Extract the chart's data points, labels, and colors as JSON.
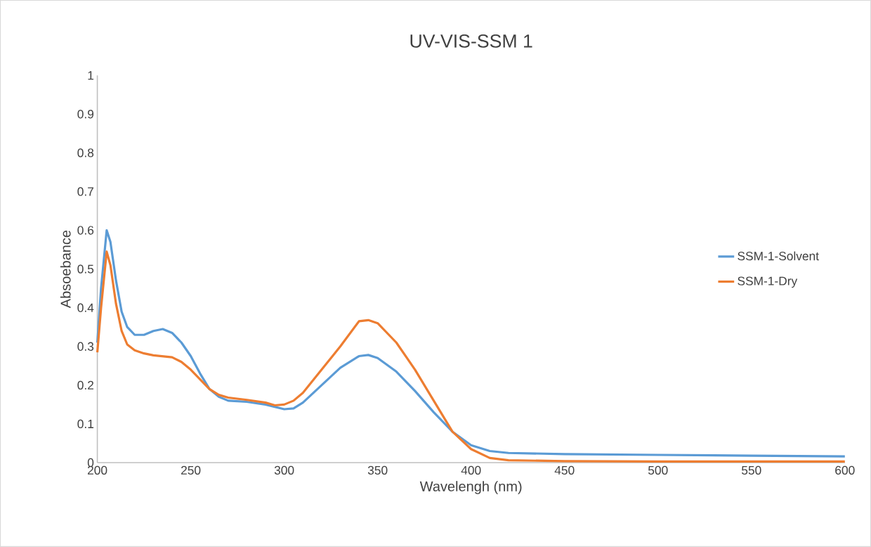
{
  "chart_data": {
    "type": "line",
    "title": "UV-VIS-SSM 1",
    "xlabel": "Wavelengh (nm)",
    "ylabel": "Absoebance",
    "xlim": [
      200,
      600
    ],
    "xticks": [
      200,
      250,
      300,
      350,
      400,
      450,
      500,
      550,
      600
    ],
    "ylim": [
      0,
      1
    ],
    "yticks": [
      0,
      0.1,
      0.2,
      0.3,
      0.4,
      0.5,
      0.6,
      0.7,
      0.8,
      0.9,
      1
    ],
    "grid": false,
    "legend": "right",
    "marker": "none",
    "line_style": "solid",
    "series": [
      {
        "name": "SSM-1-Solvent",
        "color": "#5b9bd5",
        "x": [
          200,
          202,
          205,
          207,
          210,
          213,
          216,
          220,
          225,
          230,
          235,
          240,
          245,
          250,
          255,
          260,
          265,
          270,
          280,
          290,
          300,
          305,
          310,
          320,
          330,
          340,
          345,
          350,
          360,
          370,
          380,
          390,
          400,
          410,
          420,
          450,
          500,
          550,
          600
        ],
        "values": [
          0.31,
          0.45,
          0.6,
          0.57,
          0.47,
          0.39,
          0.35,
          0.33,
          0.33,
          0.34,
          0.345,
          0.335,
          0.31,
          0.275,
          0.23,
          0.19,
          0.17,
          0.16,
          0.157,
          0.15,
          0.138,
          0.14,
          0.155,
          0.2,
          0.245,
          0.275,
          0.278,
          0.27,
          0.235,
          0.185,
          0.13,
          0.08,
          0.045,
          0.03,
          0.025,
          0.022,
          0.02,
          0.018,
          0.016
        ]
      },
      {
        "name": "SSM-1-Dry",
        "color": "#ed7d31",
        "x": [
          200,
          202,
          205,
          207,
          210,
          213,
          216,
          220,
          225,
          230,
          240,
          245,
          250,
          255,
          260,
          265,
          270,
          280,
          290,
          295,
          300,
          305,
          310,
          320,
          330,
          340,
          345,
          350,
          360,
          370,
          380,
          390,
          400,
          410,
          420,
          450,
          500,
          600
        ],
        "values": [
          0.285,
          0.4,
          0.545,
          0.51,
          0.41,
          0.34,
          0.305,
          0.29,
          0.282,
          0.277,
          0.272,
          0.26,
          0.24,
          0.215,
          0.19,
          0.175,
          0.168,
          0.162,
          0.155,
          0.148,
          0.15,
          0.16,
          0.18,
          0.24,
          0.3,
          0.365,
          0.368,
          0.36,
          0.31,
          0.24,
          0.16,
          0.08,
          0.035,
          0.012,
          0.006,
          0.004,
          0.003,
          0.003
        ]
      }
    ]
  }
}
